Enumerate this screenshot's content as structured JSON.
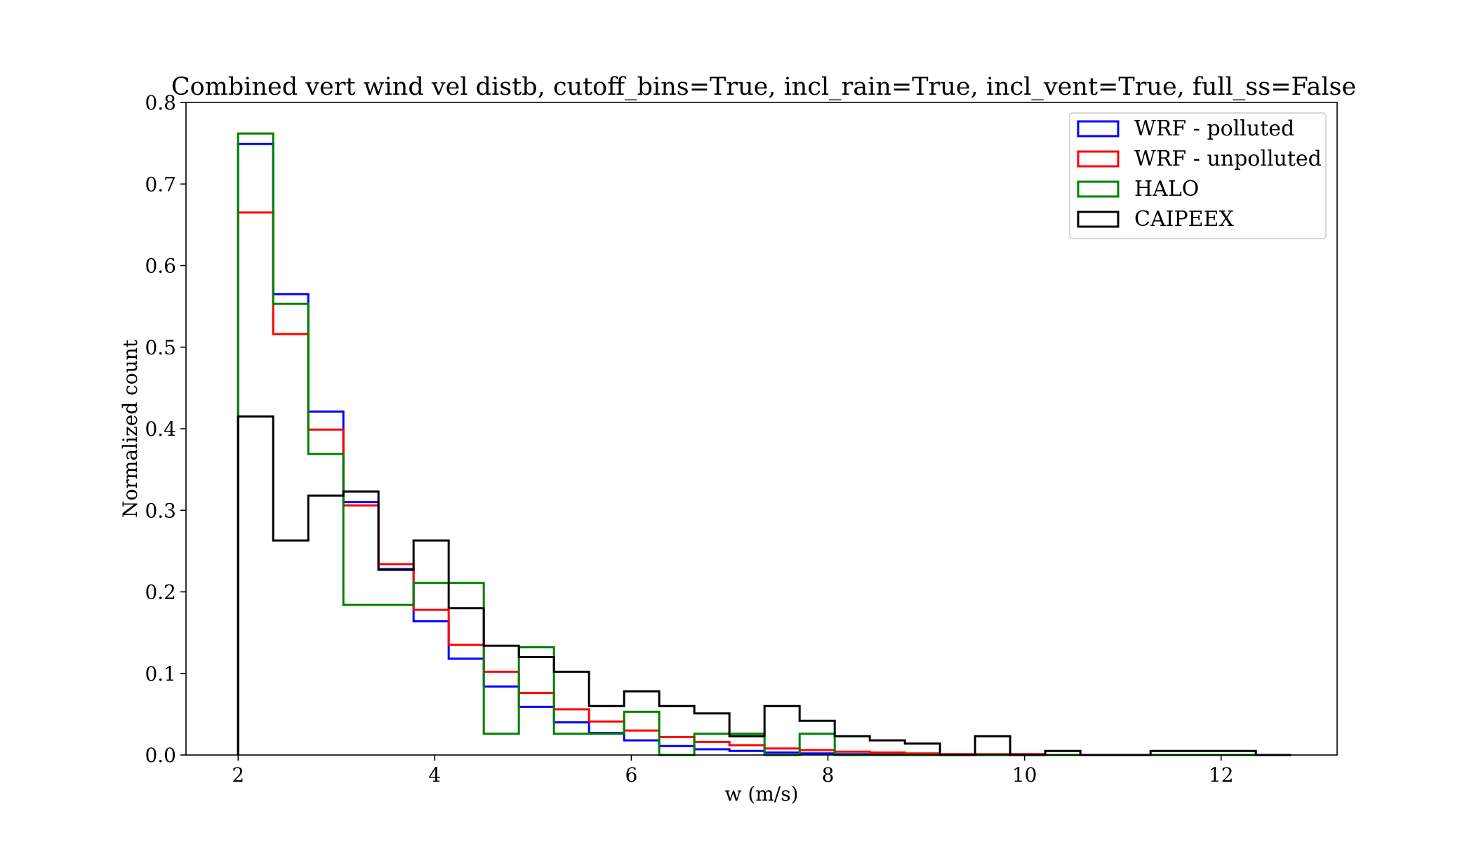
{
  "chart_data": {
    "type": "histogram-step",
    "title": "Combined vert wind vel distb, cutoff_bins=True, incl_rain=True, incl_vent=True, full_ss=False",
    "xlabel": "w (m/s)",
    "ylabel": "Normalized count",
    "xlim": [
      1.47,
      13.18
    ],
    "ylim": [
      0.0,
      0.8
    ],
    "xticks": [
      2,
      4,
      6,
      8,
      10,
      12
    ],
    "xtick_labels": [
      "2",
      "4",
      "6",
      "8",
      "10",
      "12"
    ],
    "yticks": [
      0.0,
      0.1,
      0.2,
      0.3,
      0.4,
      0.5,
      0.6,
      0.7,
      0.8
    ],
    "ytick_labels": [
      "0.0",
      "0.1",
      "0.2",
      "0.3",
      "0.4",
      "0.5",
      "0.6",
      "0.7",
      "0.8"
    ],
    "grid": false,
    "legend_position": "top-right",
    "bin_edges": [
      2.0,
      2.357,
      2.714,
      3.071,
      3.428,
      3.785,
      4.142,
      4.499,
      4.856,
      5.213,
      5.57,
      5.927,
      6.284,
      6.641,
      6.998,
      7.355,
      7.712,
      8.069,
      8.426,
      8.783,
      9.14,
      9.497,
      9.854,
      10.211,
      10.568,
      10.925,
      11.282,
      11.639,
      11.996,
      12.353,
      12.71
    ],
    "series": [
      {
        "name": "WRF - polluted",
        "color": "#0000ff",
        "values": [
          0.749,
          0.565,
          0.421,
          0.31,
          0.228,
          0.164,
          0.118,
          0.084,
          0.059,
          0.04,
          0.027,
          0.018,
          0.011,
          0.007,
          0.005,
          0.003,
          0.002,
          0.001,
          0.001,
          0.0,
          0.0,
          0.0,
          0.0,
          0.0,
          0.0,
          0.0,
          0.0,
          0.0,
          0.0,
          0.0
        ]
      },
      {
        "name": "WRF - unpolluted",
        "color": "#ff0000",
        "values": [
          0.665,
          0.516,
          0.399,
          0.306,
          0.234,
          0.178,
          0.135,
          0.102,
          0.076,
          0.056,
          0.041,
          0.03,
          0.022,
          0.016,
          0.012,
          0.008,
          0.006,
          0.004,
          0.003,
          0.002,
          0.001,
          0.001,
          0.001,
          0.0,
          0.0,
          0.0,
          0.0,
          0.0,
          0.0,
          0.0
        ]
      },
      {
        "name": "HALO",
        "color": "#008000",
        "values": [
          0.762,
          0.553,
          0.369,
          0.184,
          0.184,
          0.211,
          0.211,
          0.026,
          0.132,
          0.026,
          0.026,
          0.053,
          0.0,
          0.026,
          0.026,
          0.0,
          0.026,
          0.0,
          0.0,
          0.0,
          0.0,
          0.0,
          0.0,
          0.0,
          0.0,
          0.0,
          0.0,
          0.0,
          0.0,
          0.0
        ]
      },
      {
        "name": "CAIPEEX",
        "color": "#000000",
        "values": [
          0.415,
          0.263,
          0.318,
          0.323,
          0.227,
          0.263,
          0.18,
          0.134,
          0.12,
          0.102,
          0.06,
          0.078,
          0.06,
          0.051,
          0.023,
          0.06,
          0.042,
          0.023,
          0.018,
          0.014,
          0.0,
          0.023,
          0.0,
          0.005,
          0.0,
          0.0,
          0.005,
          0.005,
          0.005,
          0.0
        ]
      }
    ]
  }
}
